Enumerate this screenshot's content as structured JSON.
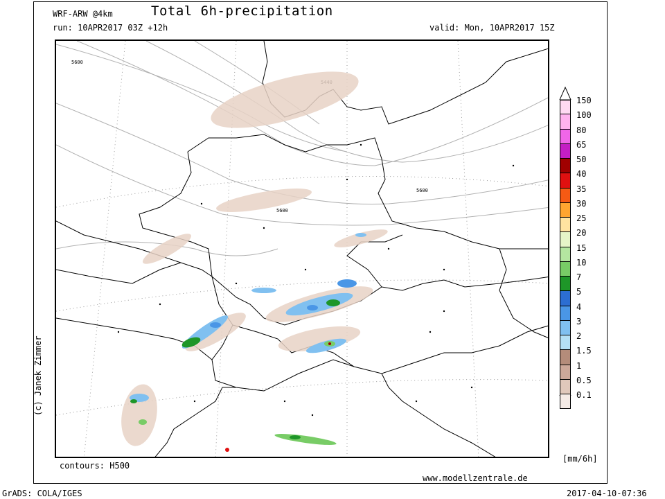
{
  "header": {
    "model": "WRF-ARW @4km",
    "title": "Total 6h-precipitation",
    "run": "run: 10APR2017 03Z +12h",
    "valid": "valid: Mon, 10APR2017 15Z"
  },
  "map": {
    "contour_labels": [
      "5600",
      "5440",
      "5600",
      "5600"
    ],
    "contours_note": "contours: H500",
    "credit_vertical": "(c) Janek Zimmer",
    "website": "www.modellzentrale.de",
    "unit": "[mm/6h]"
  },
  "colorbar": {
    "labels": [
      "150",
      "100",
      "80",
      "65",
      "50",
      "40",
      "35",
      "30",
      "25",
      "20",
      "15",
      "10",
      "7",
      "5",
      "4",
      "3",
      "2",
      "1.5",
      "1",
      "0.5",
      "0.1"
    ],
    "colors": [
      "#ffd9f2",
      "#ffb3ee",
      "#f066e8",
      "#c41ec4",
      "#a00000",
      "#e01010",
      "#f55a14",
      "#ffa530",
      "#ffe3a0",
      "#e6f5c8",
      "#b4e6a0",
      "#78cc66",
      "#1e9628",
      "#2c6ed2",
      "#4a96e6",
      "#80c0f0",
      "#b4e0f5",
      "#b48c7a",
      "#cca899",
      "#e0c8bb",
      "#f5ebe6"
    ]
  },
  "footer": {
    "grads": "GrADS: COLA/IGES",
    "timestamp": "2017-04-10-07:36"
  }
}
